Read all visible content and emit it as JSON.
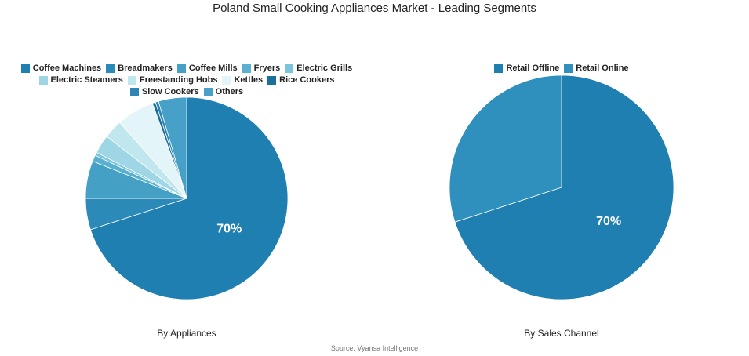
{
  "title": "Poland Small Cooking Appliances Market - Leading Segments",
  "source": "Source: Vyansa Intelligence",
  "chart_data": [
    {
      "type": "pie",
      "title": "By Appliances",
      "categories": [
        "Coffee Machines",
        "Breadmakers",
        "Coffee Mills",
        "Fryers",
        "Electric Grills",
        "Electric Steamers",
        "Freestanding Hobs",
        "Kettles",
        "Rice Cookers",
        "Slow Cookers",
        "Others"
      ],
      "values": [
        70,
        5,
        6,
        1,
        0.5,
        3,
        3,
        6,
        0.5,
        0.5,
        4.5
      ],
      "value_labels": [
        "70%",
        null,
        null,
        null,
        null,
        null,
        null,
        null,
        null,
        null,
        null
      ],
      "colors": [
        "#1f7fb0",
        "#2c8ab8",
        "#45a0c6",
        "#5ab0d0",
        "#7cc4dc",
        "#9fd6e5",
        "#c0e6ee",
        "#e4f5f9",
        "#1a6f9c",
        "#2f86b6",
        "#46a0c8"
      ]
    },
    {
      "type": "pie",
      "title": "By Sales Channel",
      "categories": [
        "Retail Offline",
        "Retail Online"
      ],
      "values": [
        70,
        30
      ],
      "value_labels": [
        "70%",
        null
      ],
      "colors": [
        "#1f7fb0",
        "#2f8fbd"
      ]
    }
  ]
}
